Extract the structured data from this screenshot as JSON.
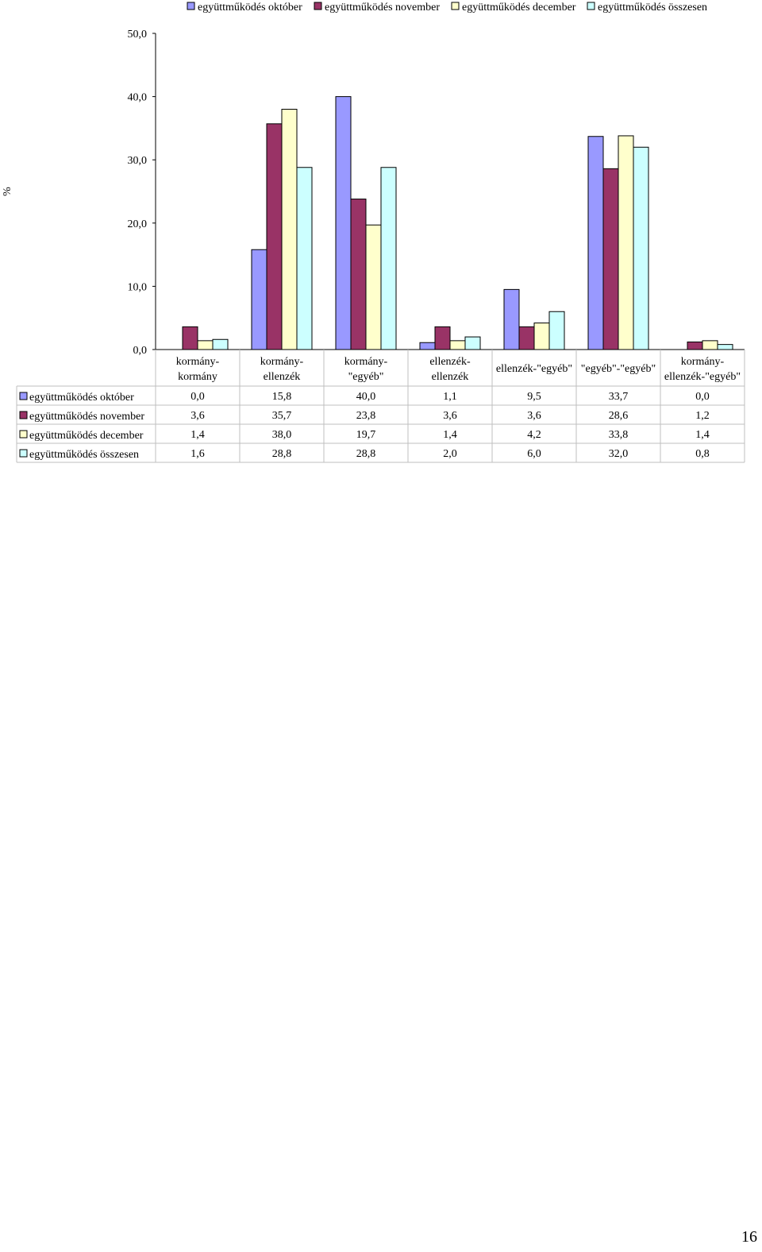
{
  "page_number": "16",
  "chart_data": {
    "type": "bar",
    "title": "",
    "ylabel": "%",
    "xlabel": "",
    "ylim": [
      0,
      50
    ],
    "yticks": [
      "0,0",
      "10,0",
      "20,0",
      "30,0",
      "40,0",
      "50,0"
    ],
    "grid": false,
    "legend_position": "top",
    "data_table": true,
    "categories": [
      [
        "kormány-",
        "kormány"
      ],
      [
        "kormány-",
        "ellenzék"
      ],
      [
        "kormány-",
        "\"egyéb\""
      ],
      [
        "ellenzék-",
        "ellenzék"
      ],
      [
        "ellenzék-\"egyéb\""
      ],
      [
        "\"egyéb\"-\"egyéb\""
      ],
      [
        "kormány-",
        "ellenzék-\"egyéb\""
      ]
    ],
    "series": [
      {
        "name": "együttműködés október",
        "color": "#9999ff",
        "values": [
          0.0,
          15.8,
          40.0,
          1.1,
          9.5,
          33.7,
          0.0
        ],
        "labels": [
          "0,0",
          "15,8",
          "40,0",
          "1,1",
          "9,5",
          "33,7",
          "0,0"
        ]
      },
      {
        "name": "együttműködés november",
        "color": "#993366",
        "values": [
          3.6,
          35.7,
          23.8,
          3.6,
          3.6,
          28.6,
          1.2
        ],
        "labels": [
          "3,6",
          "35,7",
          "23,8",
          "3,6",
          "3,6",
          "28,6",
          "1,2"
        ]
      },
      {
        "name": "együttműködés december",
        "color": "#ffffcc",
        "values": [
          1.4,
          38.0,
          19.7,
          1.4,
          4.2,
          33.8,
          1.4
        ],
        "labels": [
          "1,4",
          "38,0",
          "19,7",
          "1,4",
          "4,2",
          "33,8",
          "1,4"
        ]
      },
      {
        "name": "együttműködés összesen",
        "color": "#ccffff",
        "values": [
          1.6,
          28.8,
          28.8,
          2.0,
          6.0,
          32.0,
          0.8
        ],
        "labels": [
          "1,6",
          "28,8",
          "28,8",
          "2,0",
          "6,0",
          "32,0",
          "0,8"
        ]
      }
    ]
  }
}
